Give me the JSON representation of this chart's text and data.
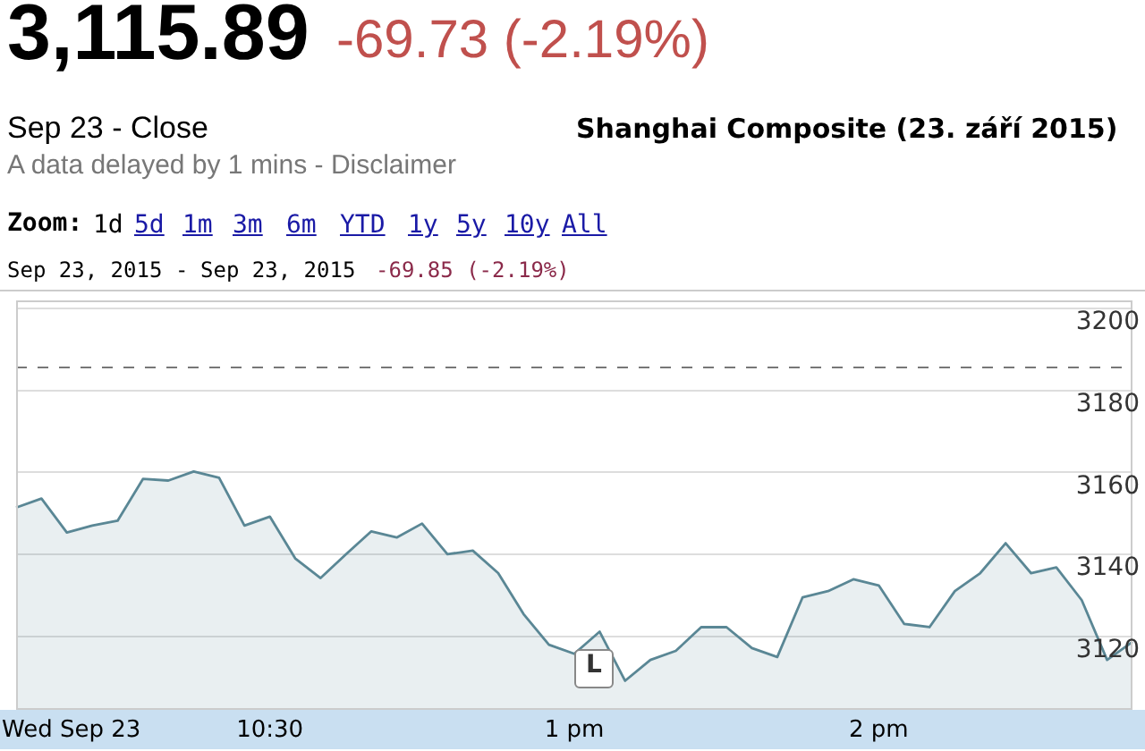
{
  "chart_data": {
    "type": "area",
    "title": "Shanghai Composite (23. září 2015)",
    "annotations": [
      "3,115.89",
      "-69.73 (-2.19%)",
      "Sep 23 - Close",
      "A data delayed by 1 mins - Disclaimer",
      "Zoom:",
      "1d",
      "5d",
      "1m",
      "3m",
      "6m",
      "YTD",
      "1y",
      "5y",
      "10y",
      "All",
      "Sep 23, 2015",
      "-",
      "Sep 23, 2015",
      "-69.85 (-2.19%)",
      "L"
    ],
    "categories": [
      null,
      null,
      "Wed Sep 23",
      null,
      null,
      null,
      null,
      null,
      null,
      null,
      "10:30",
      null,
      null,
      null,
      null,
      null,
      null,
      null,
      null,
      null,
      null,
      null,
      "1 pm",
      null,
      null,
      null,
      null,
      null,
      null,
      null,
      null,
      null,
      null,
      null,
      "2 pm",
      null,
      null,
      null,
      null,
      null,
      null,
      null,
      null,
      null,
      null
    ],
    "series": [
      {
        "color": "#5a8795",
        "values": [
          3151.4,
          3153.6,
          3145.3,
          3147,
          3148.2,
          3158.4,
          3158,
          3160.2,
          3158.7,
          3147,
          3149.2,
          3139,
          3134.2,
          3140,
          3145.6,
          3144.1,
          3147.5,
          3140,
          3140.9,
          3135.4,
          3125.4,
          3117.9,
          3115.7,
          3121.1,
          3109.1,
          3114.2,
          3116.4,
          3122.2,
          3122.2,
          3117.1,
          3114.9,
          3129.5,
          3131,
          3133.9,
          3132.4,
          3123,
          3122.2,
          3131,
          3135.4,
          3142.7,
          3135.4,
          3136.8,
          3128.8,
          3114.2,
          3118.6
        ]
      }
    ],
    "ylim": [
      3102,
      3202
    ],
    "yticks": [
      3120,
      3140,
      3160,
      3180,
      3200
    ],
    "grid": "y",
    "marker": "none",
    "line_style": "solid",
    "legend": false,
    "ref_lines": [
      {
        "axis": "y",
        "value": 3185.6,
        "color": "#777777",
        "line_style": "dashed"
      }
    ]
  }
}
